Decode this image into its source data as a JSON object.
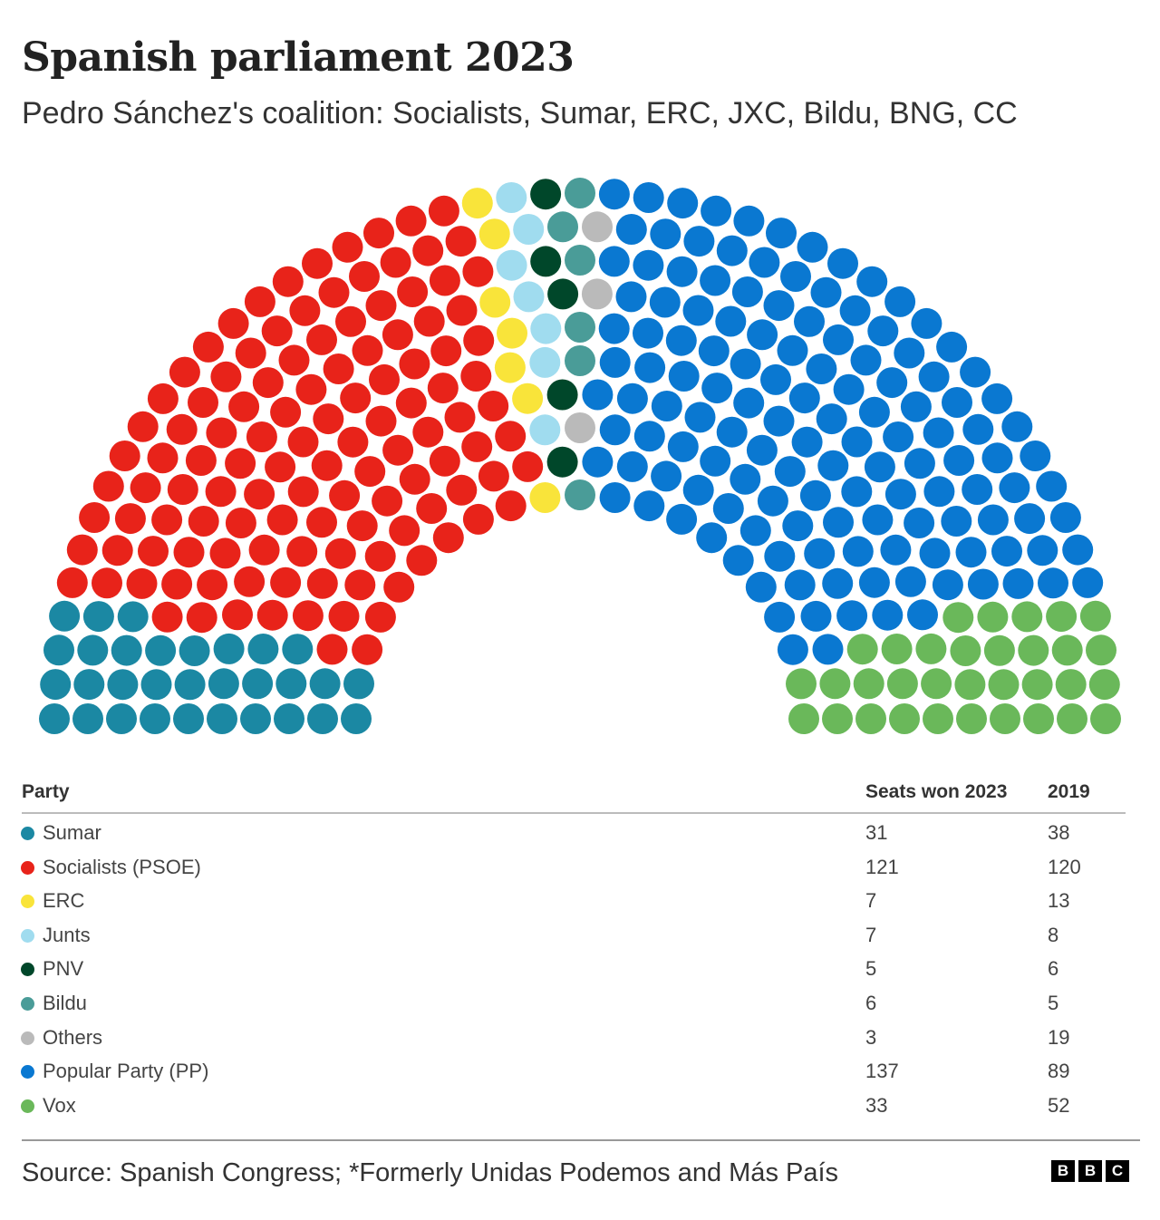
{
  "chart_data": {
    "type": "parliament",
    "title": "Spanish parliament 2023",
    "subtitle": "Pedro Sánchez's coalition: Socialists, Sumar, ERC, JXC, Bildu, BNG, CC",
    "total_seats": 350,
    "columns": [
      "Party",
      "Seats won 2023",
      "2019"
    ],
    "parties": [
      {
        "name": "Sumar",
        "seats_2023": 31,
        "seats_2019": 38,
        "color": "#1b88a3"
      },
      {
        "name": "Socialists (PSOE)",
        "seats_2023": 121,
        "seats_2019": 120,
        "color": "#e8231a"
      },
      {
        "name": "ERC",
        "seats_2023": 7,
        "seats_2019": 13,
        "color": "#f9e43a"
      },
      {
        "name": "Junts",
        "seats_2023": 7,
        "seats_2019": 8,
        "color": "#a0dcef"
      },
      {
        "name": "PNV",
        "seats_2023": 5,
        "seats_2019": 6,
        "color": "#00472a"
      },
      {
        "name": "Bildu",
        "seats_2023": 6,
        "seats_2019": 5,
        "color": "#4a9c98"
      },
      {
        "name": "Others",
        "seats_2023": 3,
        "seats_2019": 19,
        "color": "#bababa"
      },
      {
        "name": "Popular Party (PP)",
        "seats_2023": 137,
        "seats_2019": 89,
        "color": "#0a78d1"
      },
      {
        "name": "Vox",
        "seats_2023": 33,
        "seats_2019": 52,
        "color": "#6ab85a"
      }
    ]
  },
  "footer": {
    "source": "Source: Spanish Congress; *Formerly Unidas Podemos and Más País",
    "logo_letters": [
      "B",
      "B",
      "C"
    ]
  }
}
